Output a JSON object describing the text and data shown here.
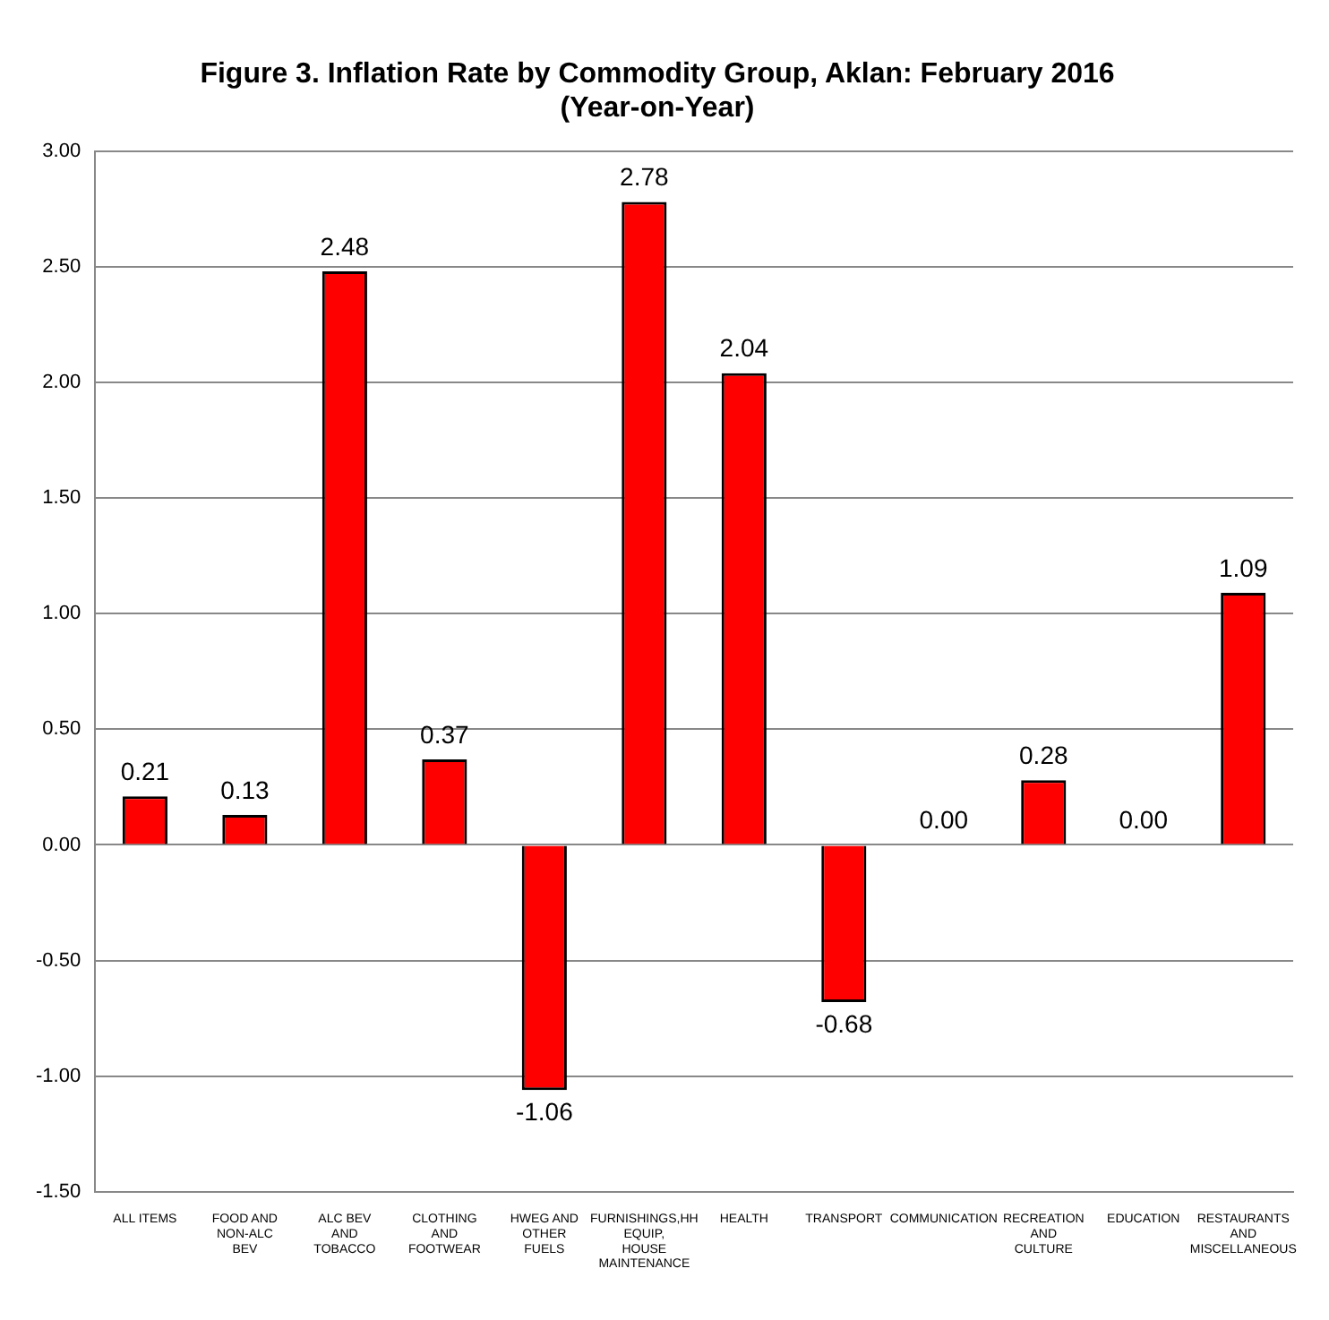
{
  "chart_data": {
    "type": "bar",
    "title": [
      "Figure 3. Inflation Rate by Commodity Group, Aklan: February 2016",
      "(Year-on-Year)"
    ],
    "categories": [
      "ALL ITEMS",
      "FOOD AND NON-ALC BEV",
      "ALC BEV AND TOBACCO",
      "CLOTHING AND FOOTWEAR",
      "HWEG AND OTHER FUELS",
      "FURNISHINGS,HH EQUIP, HOUSE MAINTENANCE",
      "HEALTH",
      "TRANSPORT",
      "COMMUNICATION",
      "RECREATION AND CULTURE",
      "EDUCATION",
      "RESTAURANTS AND MISCELLANEOUS"
    ],
    "values": [
      0.21,
      0.13,
      2.48,
      0.37,
      -1.06,
      2.78,
      2.04,
      -0.68,
      0,
      0.28,
      0,
      1.09
    ],
    "value_labels": [
      "0.21",
      "0.13",
      "2.48",
      "0.37",
      "-1.06",
      "2.78",
      "2.04",
      "-0.68",
      "0.00",
      "0.28",
      "0.00",
      "1.09"
    ],
    "color": "#ff0000",
    "ylim": [
      -1.5,
      3
    ],
    "yticks": [
      {
        "value": -1.5,
        "label": "-1.50"
      },
      {
        "value": -1,
        "label": "-1.00"
      },
      {
        "value": -0.5,
        "label": "-0.50"
      },
      {
        "value": 0,
        "label": "0.00"
      },
      {
        "value": 0.5,
        "label": "0.50"
      },
      {
        "value": 1,
        "label": "1.00"
      },
      {
        "value": 1.5,
        "label": "1.50"
      },
      {
        "value": 2,
        "label": "2.00"
      },
      {
        "value": 2.5,
        "label": "2.50"
      },
      {
        "value": 3,
        "label": "3.00"
      }
    ],
    "grid": "y"
  }
}
